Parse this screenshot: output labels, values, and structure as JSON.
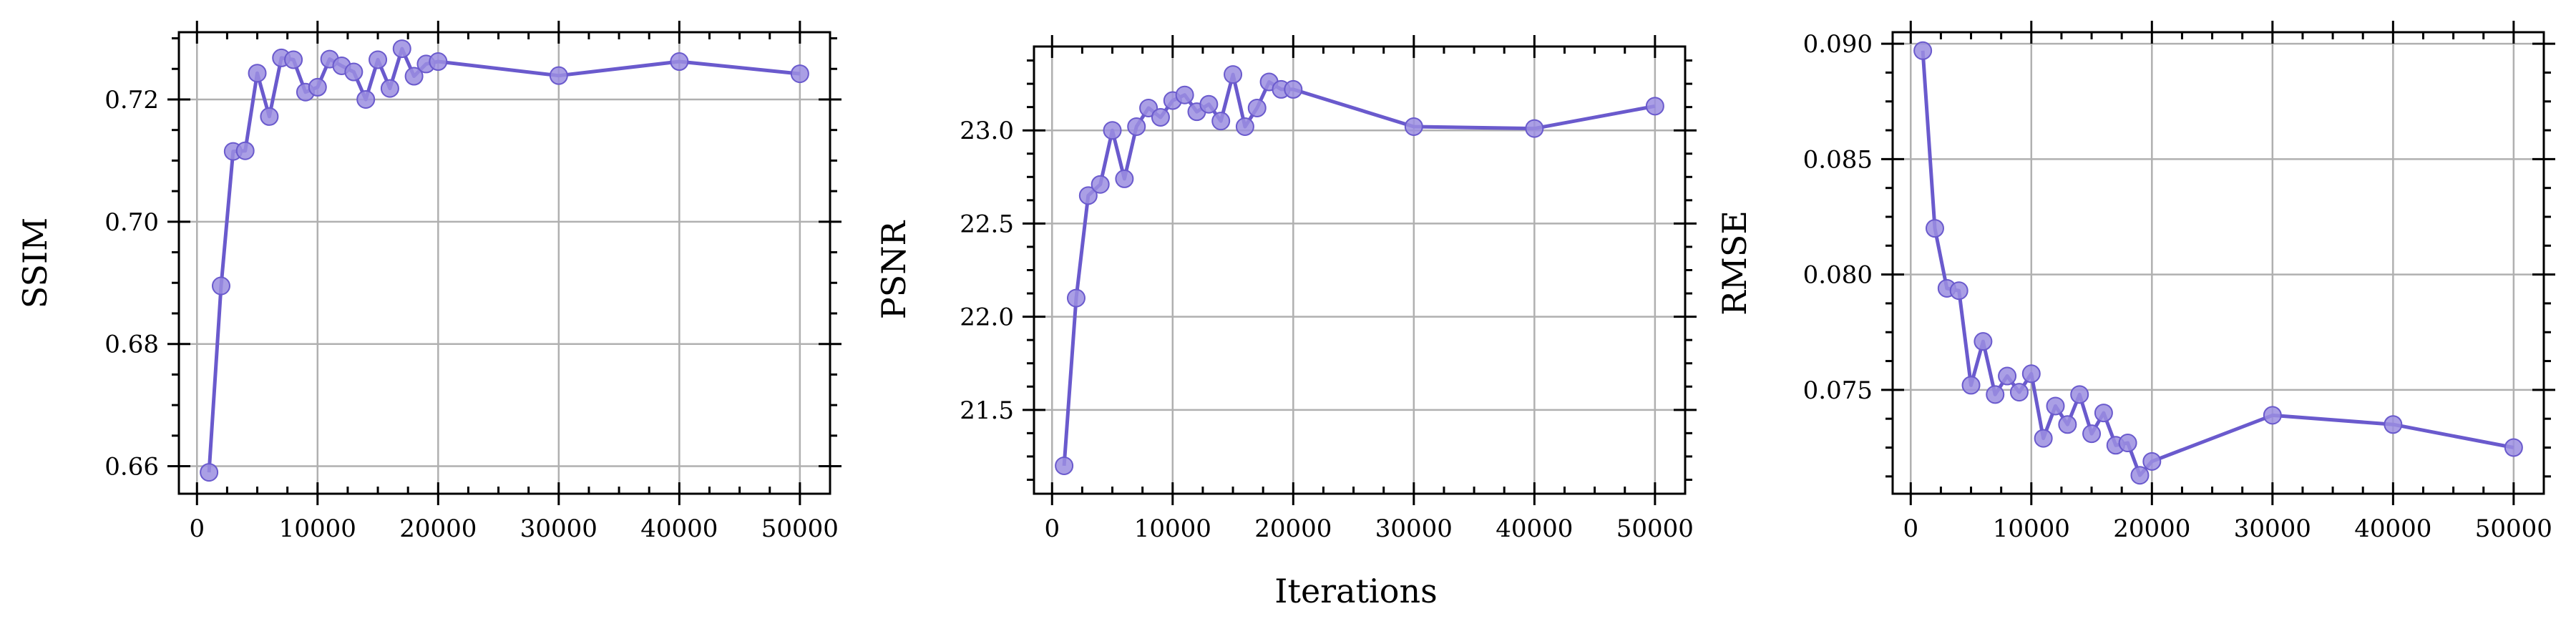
{
  "figure": {
    "shared_xlabel": "Iterations",
    "line_color": "#6a5acd",
    "marker_color": "#9b8ee0"
  },
  "chart_data": [
    {
      "type": "line",
      "title": "",
      "xlabel": "",
      "ylabel": "SSIM",
      "xlim": [
        -1500,
        52500
      ],
      "ylim": [
        0.6555,
        0.731
      ],
      "grid": true,
      "xticks": [
        0,
        10000,
        20000,
        30000,
        40000,
        50000
      ],
      "xtick_labels": [
        "0",
        "10000",
        "20000",
        "30000",
        "40000",
        "50000"
      ],
      "yticks": [
        0.66,
        0.68,
        0.7,
        0.72
      ],
      "ytick_labels": [
        "0.66",
        "0.68",
        "0.70",
        "0.72"
      ],
      "series": [
        {
          "x": [
            1000,
            2000,
            3000,
            4000,
            5000,
            6000,
            7000,
            8000,
            9000,
            10000,
            11000,
            12000,
            13000,
            14000,
            15000,
            16000,
            17000,
            18000,
            19000,
            20000,
            30000,
            40000,
            50000
          ],
          "y": [
            0.659,
            0.6895,
            0.7115,
            0.7116,
            0.7243,
            0.7172,
            0.7268,
            0.7265,
            0.7212,
            0.722,
            0.7266,
            0.7255,
            0.7245,
            0.72,
            0.7265,
            0.7218,
            0.7283,
            0.7238,
            0.7258,
            0.7262,
            0.7239,
            0.7262,
            0.7242
          ]
        }
      ]
    },
    {
      "type": "line",
      "title": "",
      "xlabel": "",
      "ylabel": "PSNR",
      "xlim": [
        -1500,
        52500
      ],
      "ylim": [
        21.05,
        23.45
      ],
      "grid": true,
      "xticks": [
        0,
        10000,
        20000,
        30000,
        40000,
        50000
      ],
      "xtick_labels": [
        "0",
        "10000",
        "20000",
        "30000",
        "40000",
        "50000"
      ],
      "yticks": [
        21.5,
        22.0,
        22.5,
        23.0
      ],
      "ytick_labels": [
        "21.5",
        "22.0",
        "22.5",
        "23.0"
      ],
      "series": [
        {
          "x": [
            1000,
            2000,
            3000,
            4000,
            5000,
            6000,
            7000,
            8000,
            9000,
            10000,
            11000,
            12000,
            13000,
            14000,
            15000,
            16000,
            17000,
            18000,
            19000,
            20000,
            30000,
            40000,
            50000
          ],
          "y": [
            21.2,
            22.1,
            22.65,
            22.71,
            23.0,
            22.74,
            23.02,
            23.12,
            23.07,
            23.16,
            23.19,
            23.1,
            23.14,
            23.05,
            23.3,
            23.02,
            23.12,
            23.26,
            23.22,
            23.22,
            23.02,
            23.01,
            23.13
          ]
        }
      ]
    },
    {
      "type": "line",
      "title": "",
      "xlabel": "",
      "ylabel": "RMSE",
      "xlim": [
        -1500,
        52500
      ],
      "ylim": [
        0.0705,
        0.0905
      ],
      "grid": true,
      "xticks": [
        0,
        10000,
        20000,
        30000,
        40000,
        50000
      ],
      "xtick_labels": [
        "0",
        "10000",
        "20000",
        "30000",
        "40000",
        "50000"
      ],
      "yticks": [
        0.075,
        0.08,
        0.085,
        0.09
      ],
      "ytick_labels": [
        "0.075",
        "0.080",
        "0.085",
        "0.090"
      ],
      "series": [
        {
          "x": [
            1000,
            2000,
            3000,
            4000,
            5000,
            6000,
            7000,
            8000,
            9000,
            10000,
            11000,
            12000,
            13000,
            14000,
            15000,
            16000,
            17000,
            18000,
            19000,
            20000,
            30000,
            40000,
            50000
          ],
          "y": [
            0.0897,
            0.082,
            0.0794,
            0.0793,
            0.0752,
            0.0771,
            0.0748,
            0.0756,
            0.0749,
            0.0757,
            0.0729,
            0.0743,
            0.0735,
            0.0748,
            0.0731,
            0.074,
            0.0726,
            0.0727,
            0.0713,
            0.0719,
            0.0739,
            0.0735,
            0.0725
          ]
        }
      ]
    }
  ]
}
